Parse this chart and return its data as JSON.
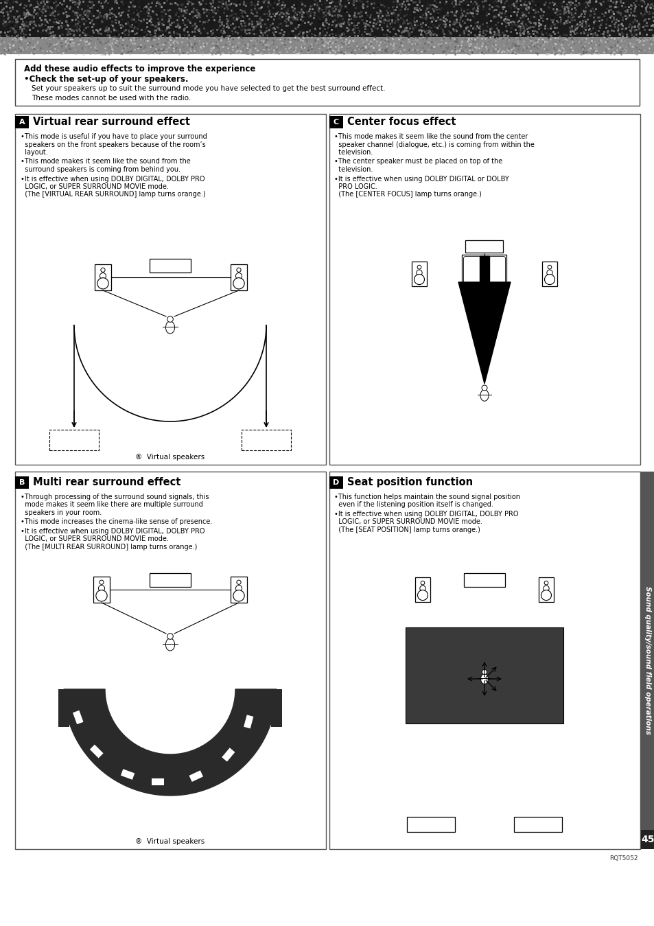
{
  "page_number": "45",
  "page_code": "RQT5052",
  "top_bar": {
    "bold_line1": "Add these audio effects to improve the experience",
    "bold_line2": "•Check the set-up of your speakers.",
    "normal_line1": "Set your speakers up to suit the surround mode you have selected to get the best surround effect.",
    "normal_line2": "These modes cannot be used with the radio."
  },
  "section_A": {
    "label": "A",
    "title": "Virtual rear surround effect",
    "bullets": [
      "•This mode is useful if you have to place your surround\n  speakers on the front speakers because of the room’s\n  layout.",
      "•This mode makes it seem like the sound from the\n  surround speakers is coming from behind you.",
      "•It is effective when using DOLBY DIGITAL, DOLBY PRO\n  LOGIC, or SUPER SURROUND MOVIE mode.\n  (The [VIRTUAL REAR SURROUND] lamp turns orange.)"
    ],
    "caption": "®  Virtual speakers"
  },
  "section_C": {
    "label": "C",
    "title": "Center focus effect",
    "bullets": [
      "•This mode makes it seem like the sound from the center\n  speaker channel (dialogue, etc.) is coming from within the\n  television.",
      "•The center speaker must be placed on top of the\n  television.",
      "•It is effective when using DOLBY DIGITAL or DOLBY\n  PRO LOGIC.\n  (The [CENTER FOCUS] lamp turns orange.)"
    ]
  },
  "section_B": {
    "label": "B",
    "title": "Multi rear surround effect",
    "bullets": [
      "•Through processing of the surround sound signals, this\n  mode makes it seem like there are multiple surround\n  speakers in your room.",
      "•This mode increases the cinema-like sense of presence.",
      "•It is effective when using DOLBY DIGITAL, DOLBY PRO\n  LOGIC, or SUPER SURROUND MOVIE mode.\n  (The [MULTI REAR SURROUND] lamp turns orange.)"
    ],
    "caption": "®  Virtual speakers"
  },
  "section_D": {
    "label": "D",
    "title": "Seat position function",
    "bullets": [
      "•This function helps maintain the sound signal position\n  even if the listening position itself is changed.",
      "•It is effective when using DOLBY DIGITAL, DOLBY PRO\n  LOGIC, or SUPER SURROUND MOVIE mode.\n  (The [SEAT POSITION] lamp turns orange.)"
    ]
  },
  "sidebar_text": "Sound quality/sound field operations"
}
